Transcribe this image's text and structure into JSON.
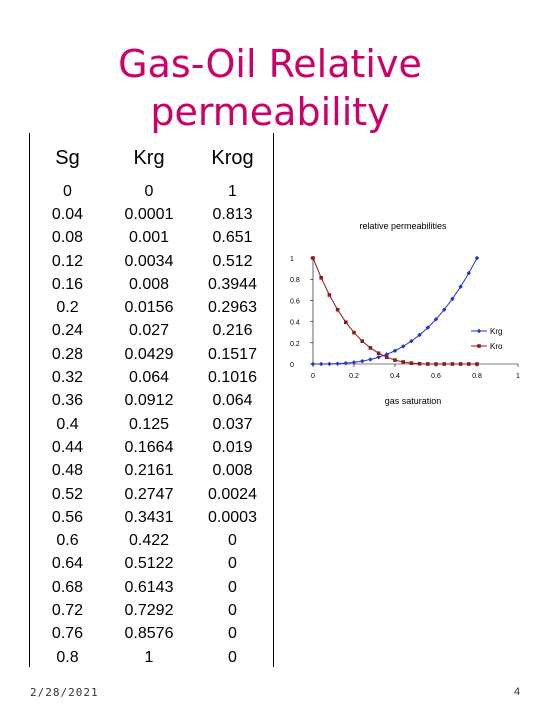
{
  "slide": {
    "title_line1": "Gas-Oil Relative",
    "title_line2": "permeability",
    "date": "2/28/2021",
    "page_number": "4"
  },
  "table": {
    "headers": [
      "Sg",
      "Krg",
      "Krog"
    ],
    "rows": [
      [
        "0",
        "0",
        "1"
      ],
      [
        "0.04",
        "0.0001",
        "0.813"
      ],
      [
        "0.08",
        "0.001",
        "0.651"
      ],
      [
        "0.12",
        "0.0034",
        "0.512"
      ],
      [
        "0.16",
        "0.008",
        "0.3944"
      ],
      [
        "0.2",
        "0.0156",
        "0.2963"
      ],
      [
        "0.24",
        "0.027",
        "0.216"
      ],
      [
        "0.28",
        "0.0429",
        "0.1517"
      ],
      [
        "0.32",
        "0.064",
        "0.1016"
      ],
      [
        "0.36",
        "0.0912",
        "0.064"
      ],
      [
        "0.4",
        "0.125",
        "0.037"
      ],
      [
        "0.44",
        "0.1664",
        "0.019"
      ],
      [
        "0.48",
        "0.2161",
        "0.008"
      ],
      [
        "0.52",
        "0.2747",
        "0.0024"
      ],
      [
        "0.56",
        "0.3431",
        "0.0003"
      ],
      [
        "0.6",
        "0.422",
        "0"
      ],
      [
        "0.64",
        "0.5122",
        "0"
      ],
      [
        "0.68",
        "0.6143",
        "0"
      ],
      [
        "0.72",
        "0.7292",
        "0"
      ],
      [
        "0.76",
        "0.8576",
        "0"
      ],
      [
        "0.8",
        "1",
        "0"
      ]
    ]
  },
  "chart_data": {
    "type": "line",
    "title": "relative permeabilities",
    "xlabel": "gas saturation",
    "ylabel": "",
    "xlim": [
      0,
      1
    ],
    "ylim": [
      0,
      1
    ],
    "x_ticks": [
      "0",
      "0.2",
      "0.4",
      "0.6",
      "0.8",
      "1"
    ],
    "y_ticks": [
      "0",
      "0.2",
      "0.4",
      "0.6",
      "0.8",
      "1"
    ],
    "grid": false,
    "legend_position": "right",
    "x": [
      0,
      0.04,
      0.08,
      0.12,
      0.16,
      0.2,
      0.24,
      0.28,
      0.32,
      0.36,
      0.4,
      0.44,
      0.48,
      0.52,
      0.56,
      0.6,
      0.64,
      0.68,
      0.72,
      0.76,
      0.8
    ],
    "series": [
      {
        "name": "Krg",
        "color": "#2233cc",
        "marker": "diamond",
        "values": [
          0,
          0.0001,
          0.001,
          0.0034,
          0.008,
          0.0156,
          0.027,
          0.0429,
          0.064,
          0.0912,
          0.125,
          0.1664,
          0.2161,
          0.2747,
          0.3431,
          0.422,
          0.5122,
          0.6143,
          0.7292,
          0.8576,
          1
        ]
      },
      {
        "name": "Kro",
        "color": "#8b1a1a",
        "marker": "square",
        "values": [
          1,
          0.813,
          0.651,
          0.512,
          0.3944,
          0.2963,
          0.216,
          0.1517,
          0.1016,
          0.064,
          0.037,
          0.019,
          0.008,
          0.0024,
          0.0003,
          0,
          0,
          0,
          0,
          0,
          0
        ]
      }
    ]
  }
}
